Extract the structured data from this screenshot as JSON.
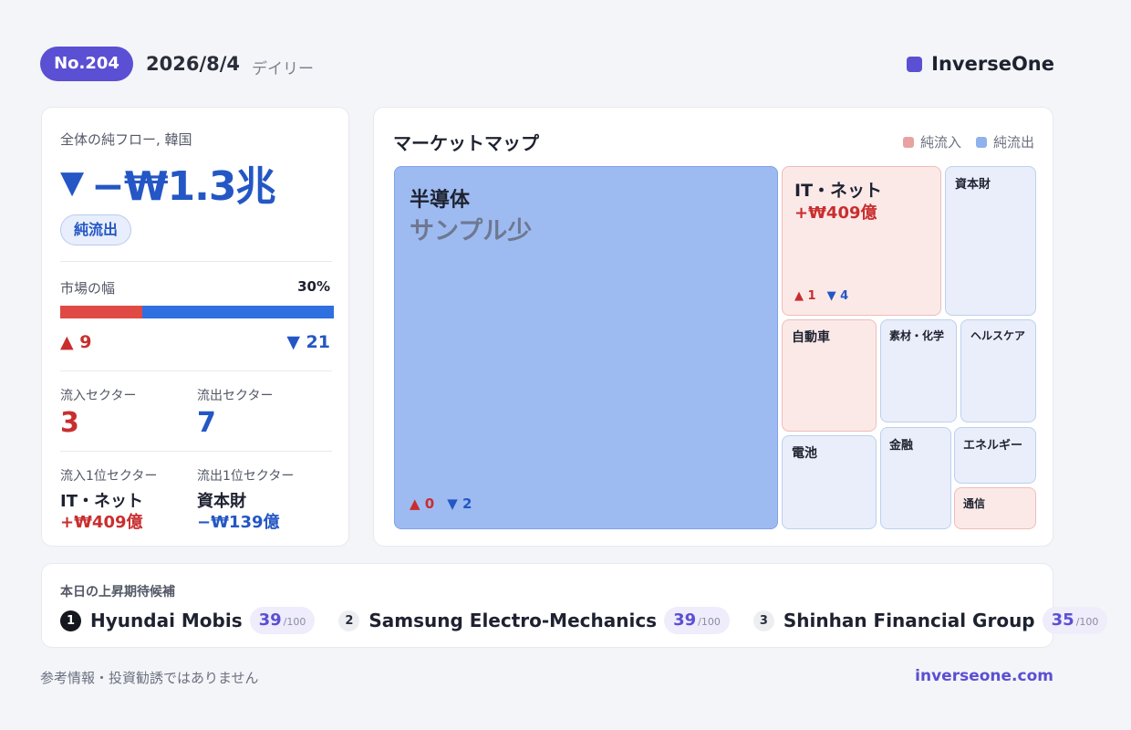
{
  "header": {
    "issue": "No.204",
    "date": "2026/8/4",
    "period": "デイリー",
    "brand": "InverseOne"
  },
  "summary": {
    "label": "全体の純フロー, 韓国",
    "total_arrow": "▼",
    "total": "−₩1.3兆",
    "status": "純流出",
    "breadth_label": "市場の幅",
    "breadth_pct": "30%",
    "breadth_up_fraction": 0.3,
    "up_count": "▲ 9",
    "down_count": "▼ 21",
    "inflow_sectors_label": "流入セクター",
    "inflow_sectors": "3",
    "outflow_sectors_label": "流出セクター",
    "outflow_sectors": "7",
    "top_inflow_label": "流入1位セクター",
    "top_inflow_name": "IT・ネット",
    "top_inflow_value": "+₩409億",
    "top_outflow_label": "流出1位セクター",
    "top_outflow_name": "資本財",
    "top_outflow_value": "−₩139億"
  },
  "market_map": {
    "title": "マーケットマップ",
    "legend": {
      "inflow": "純流入",
      "outflow": "純流出"
    },
    "colors": {
      "inflow": "#e8a3a0",
      "outflow": "#8fb1ec"
    },
    "tiles": {
      "semiconductor": {
        "name": "半導体",
        "note": "サンプル少",
        "up": "▲ 0",
        "down": "▼ 2"
      },
      "it_net": {
        "name": "IT・ネット",
        "value": "+₩409億",
        "up": "▲ 1",
        "down": "▼ 4"
      },
      "capital_goods": {
        "name": "資本財"
      },
      "auto": {
        "name": "自動車"
      },
      "materials": {
        "name": "素材・化学"
      },
      "healthcare": {
        "name": "ヘルスケア"
      },
      "battery": {
        "name": "電池"
      },
      "finance": {
        "name": "金融"
      },
      "energy": {
        "name": "エネルギー"
      },
      "telecom": {
        "name": "通信"
      }
    }
  },
  "candidates": {
    "title": "本日の上昇期待候補",
    "items": [
      {
        "rank": "1",
        "name": "Hyundai Mobis",
        "score": "39",
        "max": "/100"
      },
      {
        "rank": "2",
        "name": "Samsung Electro-Mechanics",
        "score": "39",
        "max": "/100"
      },
      {
        "rank": "3",
        "name": "Shinhan Financial Group",
        "score": "35",
        "max": "/100"
      }
    ]
  },
  "footer": {
    "disclaimer": "参考情報・投資勧誘ではありません",
    "site": "inverseone.com"
  }
}
